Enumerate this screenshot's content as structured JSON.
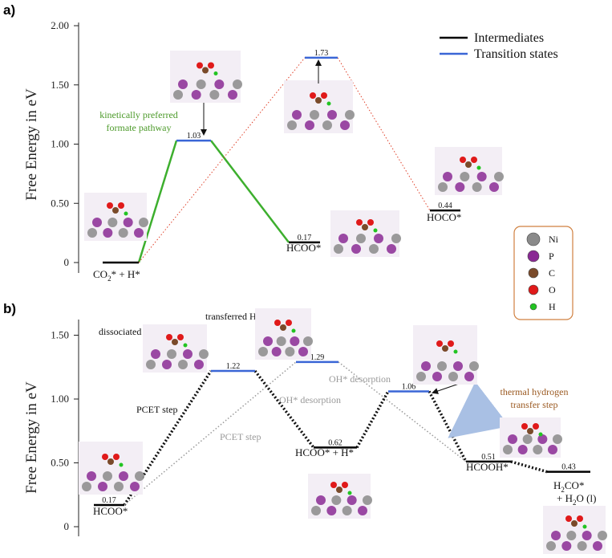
{
  "colors": {
    "intermediate": "#000000",
    "transition": "#3a66d6",
    "formate_path": "#3daf2e",
    "alt_path": "#e0412a",
    "gray_path": "#9a9a9a",
    "annotation_green": "#4c9a2a",
    "annotation_brown": "#9b5a22",
    "key_border": "#d08040",
    "arrow_blue": "#a9c0e4",
    "ni": "#8a8a8a",
    "p": "#8a2a94",
    "c": "#7a4a2a",
    "o": "#e01a1a",
    "h": "#22c422"
  },
  "chart_data": [
    {
      "type": "line",
      "panel": "a)",
      "ylabel": "Free Energy in eV",
      "ylim": [
        -0.05,
        2.02
      ],
      "yticks": [
        "0",
        "0.50",
        "1.00",
        "1.50",
        "2.00"
      ],
      "ytick_values": [
        0,
        0.5,
        1.0,
        1.5,
        2.0
      ],
      "legend": [
        "Intermediates",
        "Transition states"
      ],
      "legend_position": "top-right",
      "levels": [
        {
          "name": "CO2* + H*",
          "value": 0.0,
          "kind": "intermediate",
          "label_main": "CO",
          "label_sub": "2",
          "label_tail": "* + H*"
        },
        {
          "name": "TS formate",
          "value": 1.03,
          "kind": "transition",
          "value_label": "1.03"
        },
        {
          "name": "HCOO*",
          "value": 0.17,
          "kind": "intermediate",
          "value_label": "0.17",
          "label": "HCOO*"
        },
        {
          "name": "TS carboxyl",
          "value": 1.73,
          "kind": "transition",
          "value_label": "1.73"
        },
        {
          "name": "HOCO*",
          "value": 0.44,
          "kind": "intermediate",
          "value_label": "0.44",
          "label": "HOCO*"
        }
      ],
      "annotations": [
        "kinetically preferred",
        "formate pathway"
      ]
    },
    {
      "type": "line",
      "panel": "b)",
      "ylabel": "Free Energy in eV",
      "ylim": [
        -0.05,
        1.63
      ],
      "yticks": [
        "0",
        "0.50",
        "1.00",
        "1.50"
      ],
      "ytick_values": [
        0,
        0.5,
        1.0,
        1.5
      ],
      "levels": [
        {
          "name": "HCOO*",
          "value": 0.17,
          "kind": "intermediate",
          "value_label": "0.17",
          "label": "HCOO*"
        },
        {
          "name": "TS1 black",
          "value": 1.22,
          "kind": "transition",
          "value_label": "1.22"
        },
        {
          "name": "TS1 gray",
          "value": 1.29,
          "kind": "transition",
          "value_label": "1.29"
        },
        {
          "name": "HCOO* + H*",
          "value": 0.62,
          "kind": "intermediate",
          "value_label": "0.62",
          "label": "HCOO* + H*"
        },
        {
          "name": "TS2",
          "value": 1.06,
          "kind": "transition",
          "value_label": "1.06"
        },
        {
          "name": "HCOOH*",
          "value": 0.51,
          "kind": "intermediate",
          "value_label": "0.51",
          "label": "HCOOH*"
        },
        {
          "name": "H2CO* + H2O (l)",
          "value": 0.43,
          "kind": "intermediate",
          "value_label": "0.43"
        }
      ],
      "annotations": {
        "pcet_black": "PCET step",
        "pcet_gray": "PCET step",
        "oh_desorption_1": "OH* desorption",
        "oh_desorption_2": "OH* desorption",
        "dissociated_h": "dissociated H",
        "transferred_h": "transferred H",
        "thermal_1": "thermal hydrogen",
        "thermal_2": "transfer step",
        "h2co_main": "H",
        "h2co_sub": "2",
        "h2co_tail": "CO*",
        "h2o_line_pre": "+ H",
        "h2o_sub": "2",
        "h2o_tail": "O (l)"
      }
    }
  ],
  "atom_key": [
    "Ni",
    "P",
    "C",
    "O",
    "H"
  ]
}
